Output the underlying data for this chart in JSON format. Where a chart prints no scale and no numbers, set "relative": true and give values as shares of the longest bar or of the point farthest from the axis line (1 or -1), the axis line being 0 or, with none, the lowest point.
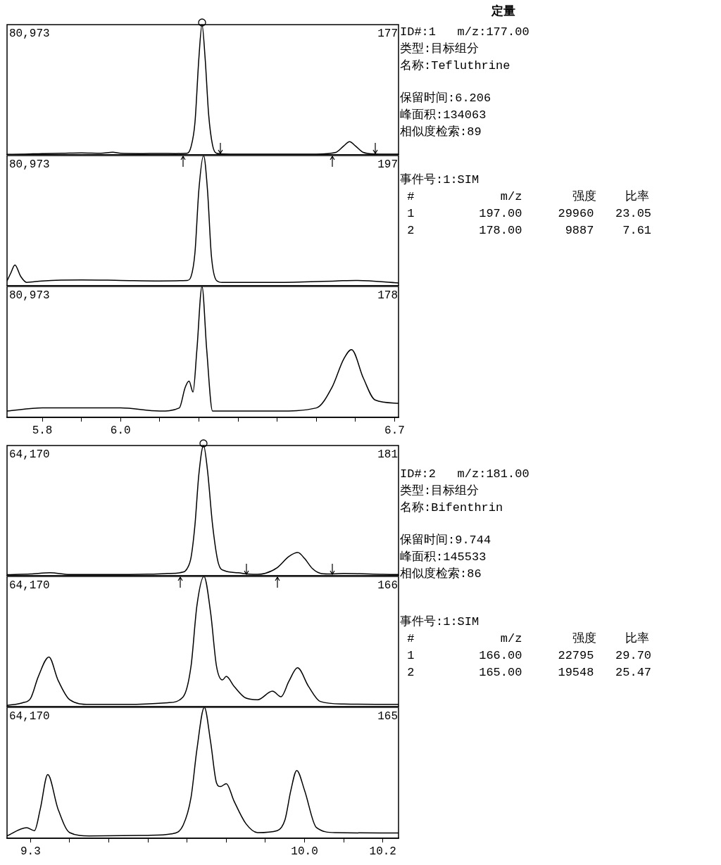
{
  "chart_data": [
    {
      "type": "line",
      "relative": true,
      "tick_labels": false,
      "xlim": [
        5.71,
        6.71
      ],
      "annotations": [
        "80,973"
      ],
      "series": [
        {
          "name": "177",
          "color": "#000000",
          "x": [
            5.71,
            5.75,
            5.8,
            5.85,
            5.9,
            5.95,
            5.98,
            6.0,
            6.05,
            6.1,
            6.14,
            6.17,
            6.18,
            6.19,
            6.2,
            6.208,
            6.216,
            6.225,
            6.235,
            6.245,
            6.26,
            6.3,
            6.4,
            6.5,
            6.55,
            6.57,
            6.585,
            6.6,
            6.62,
            6.65,
            6.71
          ],
          "values": [
            0.004,
            0.005,
            0.01,
            0.012,
            0.015,
            0.012,
            0.02,
            0.012,
            0.01,
            0.011,
            0.01,
            0.012,
            0.062,
            0.247,
            0.741,
            1,
            0.741,
            0.309,
            0.074,
            0.012,
            0.007,
            0.006,
            0.006,
            0.006,
            0.019,
            0.068,
            0.101,
            0.068,
            0.019,
            0.007,
            0.005
          ]
        }
      ]
    },
    {
      "type": "other",
      "title": "定量",
      "annotations": [
        "ID#:1   m/z:177.00",
        "类型:目标组分",
        "名称:Tefluthrine",
        "保留时间:6.206",
        "峰面积:134063",
        "相似度检索:89",
        "事件号:1:SIM",
        " #            m/z       强度    比率",
        " 1         197.00     29960   23.05",
        " 2         178.00      9887    7.61"
      ]
    },
    {
      "type": "line",
      "relative": true,
      "tick_labels": false,
      "xlim": [
        5.71,
        6.71
      ],
      "annotations": [
        "80,973"
      ],
      "series": [
        {
          "name": "197",
          "color": "#000000",
          "x": [
            5.71,
            5.72,
            5.73,
            5.745,
            5.76,
            5.8,
            5.9,
            6.0,
            6.1,
            6.17,
            6.18,
            6.19,
            6.2,
            6.212,
            6.222,
            6.232,
            6.245,
            6.26,
            6.4,
            6.55,
            6.6,
            6.71
          ],
          "values": [
            0.037,
            0.1,
            0.16,
            0.071,
            0.026,
            0.037,
            0.045,
            0.041,
            0.037,
            0.041,
            0.071,
            0.253,
            0.736,
            1,
            0.736,
            0.23,
            0.041,
            0.026,
            0.026,
            0.037,
            0.041,
            0.022
          ]
        }
      ]
    },
    {
      "type": "line",
      "relative": true,
      "tick_labels": "x",
      "xlim": [
        5.71,
        6.71
      ],
      "xticks": [
        5.8,
        {
          "value": 5.9,
          "label": null
        },
        {
          "value": 6.0,
          "label": "6.0"
        },
        {
          "value": 6.1,
          "label": null
        },
        {
          "value": 6.2,
          "label": null
        },
        {
          "value": 6.3,
          "label": null
        },
        {
          "value": 6.4,
          "label": null
        },
        {
          "value": 6.5,
          "label": null
        },
        {
          "value": 6.6,
          "label": null
        },
        6.7
      ],
      "annotations": [
        "80,973"
      ],
      "series": [
        {
          "name": "178",
          "color": "#000000",
          "x": [
            5.71,
            5.8,
            5.9,
            6.0,
            6.1,
            6.15,
            6.165,
            6.175,
            6.185,
            6.195,
            6.208,
            6.22,
            6.235,
            6.3,
            6.4,
            6.5,
            6.54,
            6.57,
            6.59,
            6.62,
            6.65,
            6.71
          ],
          "values": [
            0.048,
            0.072,
            0.072,
            0.072,
            0.048,
            0.072,
            0.229,
            0.277,
            0.193,
            0.518,
            1,
            0.518,
            0.048,
            0.048,
            0.048,
            0.072,
            0.229,
            0.446,
            0.518,
            0.301,
            0.133,
            0.108
          ]
        }
      ]
    },
    {
      "type": "line",
      "relative": true,
      "tick_labels": false,
      "xlim": [
        9.24,
        10.24
      ],
      "annotations": [
        "64,170"
      ],
      "series": [
        {
          "name": "181",
          "color": "#000000",
          "x": [
            9.24,
            9.3,
            9.35,
            9.4,
            9.5,
            9.6,
            9.65,
            9.69,
            9.7,
            9.71,
            9.72,
            9.73,
            9.742,
            9.752,
            9.765,
            9.78,
            9.795,
            9.83,
            9.86,
            9.88,
            9.9,
            9.93,
            9.96,
            9.983,
            10.0,
            10.02,
            10.04,
            10.06,
            10.1,
            10.2,
            10.24
          ],
          "values": [
            0.008,
            0.014,
            0.023,
            0.009,
            0.009,
            0.012,
            0.017,
            0.028,
            0.055,
            0.14,
            0.39,
            0.779,
            1,
            0.81,
            0.39,
            0.094,
            0.039,
            0.023,
            0.012,
            0.011,
            0.019,
            0.062,
            0.148,
            0.178,
            0.132,
            0.055,
            0.019,
            0.014,
            0.017,
            0.011,
            0.009
          ]
        }
      ]
    },
    {
      "type": "other",
      "annotations": [
        "ID#:2   m/z:181.00",
        "类型:目标组分",
        "名称:Bifenthrin",
        "保留时间:9.744",
        "峰面积:145533",
        "相似度检索:86",
        "事件号:1:SIM",
        " #            m/z       强度    比率",
        " 1         166.00     22795   29.70",
        " 2         165.00     19548   25.47"
      ]
    },
    {
      "type": "line",
      "relative": true,
      "tick_labels": false,
      "xlim": [
        9.24,
        10.24
      ],
      "annotations": [
        "64,170"
      ],
      "series": [
        {
          "name": "166",
          "color": "#000000",
          "x": [
            9.24,
            9.28,
            9.3,
            9.32,
            9.347,
            9.37,
            9.4,
            9.45,
            9.55,
            9.65,
            9.69,
            9.71,
            9.725,
            9.743,
            9.76,
            9.775,
            9.79,
            9.8,
            9.82,
            9.85,
            9.88,
            9.918,
            9.94,
            9.96,
            9.982,
            10.01,
            10.04,
            10.1,
            10.24
          ],
          "values": [
            0.01,
            0.03,
            0.063,
            0.232,
            0.381,
            0.205,
            0.053,
            0.017,
            0.017,
            0.03,
            0.076,
            0.311,
            0.775,
            1,
            0.722,
            0.311,
            0.205,
            0.232,
            0.156,
            0.066,
            0.053,
            0.119,
            0.076,
            0.195,
            0.298,
            0.156,
            0.04,
            0.02,
            0.017
          ]
        }
      ]
    },
    {
      "type": "line",
      "relative": true,
      "tick_labels": "x",
      "xlim": [
        9.24,
        10.24
      ],
      "xticks": [
        9.3,
        {
          "value": 9.4,
          "label": null
        },
        {
          "value": 9.5,
          "label": null
        },
        {
          "value": 9.6,
          "label": null
        },
        {
          "value": 9.7,
          "label": null
        },
        {
          "value": 9.8,
          "label": null
        },
        {
          "value": 9.9,
          "label": null
        },
        {
          "value": 10.0,
          "label": "10.0"
        },
        {
          "value": 10.1,
          "label": null
        },
        10.2
      ],
      "annotations": [
        "64,170"
      ],
      "series": [
        {
          "name": "165",
          "color": "#000000",
          "x": [
            9.24,
            9.29,
            9.31,
            9.325,
            9.344,
            9.37,
            9.4,
            9.45,
            9.6,
            9.66,
            9.69,
            9.71,
            9.725,
            9.744,
            9.76,
            9.775,
            9.785,
            9.8,
            9.82,
            9.85,
            9.88,
            9.93,
            9.95,
            9.965,
            9.98,
            10.0,
            10.03,
            10.08,
            10.24
          ],
          "values": [
            0.018,
            0.08,
            0.058,
            0.225,
            0.486,
            0.225,
            0.043,
            0.018,
            0.022,
            0.033,
            0.101,
            0.312,
            0.678,
            1,
            0.736,
            0.424,
            0.395,
            0.417,
            0.283,
            0.112,
            0.043,
            0.058,
            0.141,
            0.366,
            0.518,
            0.366,
            0.083,
            0.043,
            0.04
          ]
        }
      ]
    }
  ]
}
